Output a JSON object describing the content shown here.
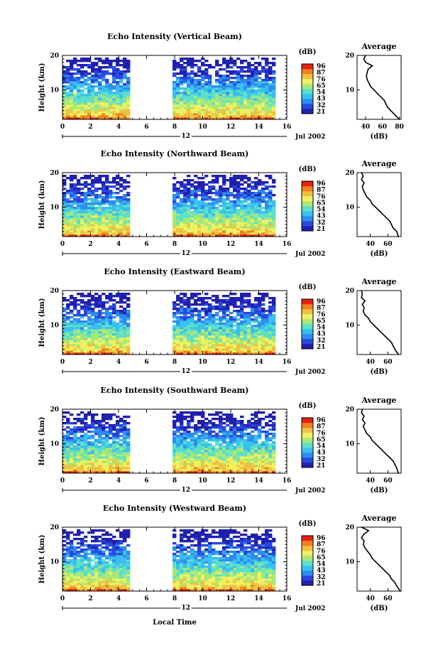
{
  "figure": {
    "x_axis_label": "Local Time",
    "date_label": "Jul 2002",
    "day_marker": "12"
  },
  "colorbar": {
    "unit": "(dB)",
    "ticks": [
      "96",
      "87",
      "76",
      "65",
      "54",
      "43",
      "32",
      "21"
    ],
    "colors": [
      "#2020b0",
      "#2848e0",
      "#2d8cf0",
      "#38c0f0",
      "#5ce0c8",
      "#a8e878",
      "#f0f060",
      "#f0c040",
      "#f08020",
      "#e82010"
    ]
  },
  "chart_data": [
    {
      "type": "heatmap",
      "title": "Echo Intensity (Vertical Beam)",
      "ylabel": "Height (km)",
      "xlabel": "Local Time",
      "x_ticks": [
        0,
        2,
        4,
        6,
        8,
        10,
        12,
        14,
        16
      ],
      "y_ticks": [
        10,
        20
      ],
      "xlim": [
        0,
        16
      ],
      "ylim": [
        1.5,
        20
      ],
      "data_gap_hours": [
        5,
        7.7
      ],
      "colorbar_ticks_dB": [
        21,
        32,
        43,
        54,
        65,
        76,
        87,
        96
      ],
      "profile": {
        "title": "Average",
        "xlabel": "(dB)",
        "x_ticks": [
          40,
          60,
          80
        ],
        "xlim": [
          30,
          82
        ],
        "height_km": [
          1.5,
          3,
          4,
          5,
          6,
          7,
          8,
          9,
          10,
          11,
          12,
          13,
          14,
          15,
          16,
          17,
          18,
          19,
          20
        ],
        "power_dB": [
          80,
          74,
          70,
          66,
          64,
          62,
          58,
          54,
          50,
          46,
          44,
          42,
          41,
          42,
          43,
          48,
          40,
          38,
          40
        ]
      }
    },
    {
      "type": "heatmap",
      "title": "Echo Intensity (Northward Beam)",
      "ylabel": "Height (km)",
      "xlabel": "Local Time",
      "x_ticks": [
        0,
        2,
        4,
        6,
        8,
        10,
        12,
        14,
        16
      ],
      "y_ticks": [
        10,
        20
      ],
      "xlim": [
        0,
        16
      ],
      "ylim": [
        1.5,
        20
      ],
      "data_gap_hours": [
        5,
        7.7
      ],
      "colorbar_ticks_dB": [
        21,
        32,
        43,
        54,
        65,
        76,
        87,
        96
      ],
      "profile": {
        "title": "Average",
        "xlabel": "(dB)",
        "x_ticks": [
          40,
          60
        ],
        "xlim": [
          25,
          75
        ],
        "height_km": [
          1.5,
          3,
          4,
          5,
          6,
          7,
          8,
          9,
          10,
          11,
          12,
          13,
          14,
          15,
          16,
          17,
          18,
          19,
          20
        ],
        "power_dB": [
          72,
          70,
          66,
          64,
          62,
          58,
          54,
          50,
          46,
          42,
          40,
          36,
          34,
          32,
          31,
          33,
          30,
          32,
          30
        ]
      }
    },
    {
      "type": "heatmap",
      "title": "Echo Intensity (Eastward Beam)",
      "ylabel": "Height (km)",
      "xlabel": "Local Time",
      "x_ticks": [
        0,
        2,
        4,
        6,
        8,
        10,
        12,
        14,
        16
      ],
      "y_ticks": [
        10,
        20
      ],
      "xlim": [
        0,
        16
      ],
      "ylim": [
        1.5,
        20
      ],
      "data_gap_hours": [
        5,
        7.7
      ],
      "colorbar_ticks_dB": [
        21,
        32,
        43,
        54,
        65,
        76,
        87,
        96
      ],
      "profile": {
        "title": "Average",
        "xlabel": "(dB)",
        "x_ticks": [
          40,
          60
        ],
        "xlim": [
          25,
          75
        ],
        "height_km": [
          1.5,
          3,
          4,
          5,
          6,
          7,
          8,
          9,
          10,
          11,
          12,
          13,
          14,
          15,
          16,
          17,
          18,
          19,
          20
        ],
        "power_dB": [
          72,
          68,
          66,
          64,
          60,
          56,
          52,
          48,
          44,
          40,
          38,
          34,
          32,
          33,
          31,
          34,
          30,
          31,
          30
        ]
      }
    },
    {
      "type": "heatmap",
      "title": "Echo Intensity (Southward Beam)",
      "ylabel": "Height (km)",
      "xlabel": "Local Time",
      "x_ticks": [
        0,
        2,
        4,
        6,
        8,
        10,
        12,
        14,
        16
      ],
      "y_ticks": [
        10,
        20
      ],
      "xlim": [
        0,
        16
      ],
      "ylim": [
        1.5,
        20
      ],
      "data_gap_hours": [
        5,
        7.7
      ],
      "colorbar_ticks_dB": [
        21,
        32,
        43,
        54,
        65,
        76,
        87,
        96
      ],
      "profile": {
        "title": "Average",
        "xlabel": "(dB)",
        "x_ticks": [
          40,
          60
        ],
        "xlim": [
          25,
          75
        ],
        "height_km": [
          1.5,
          3,
          4,
          5,
          6,
          7,
          8,
          9,
          10,
          11,
          12,
          13,
          14,
          15,
          16,
          17,
          18,
          19,
          20
        ],
        "power_dB": [
          72,
          70,
          68,
          66,
          62,
          58,
          54,
          50,
          46,
          42,
          40,
          36,
          34,
          32,
          34,
          31,
          33,
          30,
          31
        ]
      }
    },
    {
      "type": "heatmap",
      "title": "Echo Intensity (Westward Beam)",
      "ylabel": "Height (km)",
      "xlabel": "Local Time",
      "x_ticks": [
        0,
        2,
        4,
        6,
        8,
        10,
        12,
        14,
        16
      ],
      "y_ticks": [
        10,
        20
      ],
      "xlim": [
        0,
        16
      ],
      "ylim": [
        1.5,
        20
      ],
      "data_gap_hours": [
        5,
        7.7
      ],
      "colorbar_ticks_dB": [
        21,
        32,
        43,
        54,
        65,
        76,
        87,
        96
      ],
      "profile": {
        "title": "Average",
        "xlabel": "(dB)",
        "x_ticks": [
          40,
          60
        ],
        "xlim": [
          25,
          75
        ],
        "height_km": [
          1.5,
          3,
          4,
          5,
          6,
          7,
          8,
          9,
          10,
          11,
          12,
          13,
          14,
          15,
          16,
          17,
          18,
          19,
          20
        ],
        "power_dB": [
          74,
          70,
          68,
          64,
          62,
          58,
          54,
          50,
          46,
          42,
          40,
          37,
          34,
          32,
          33,
          30,
          33,
          38,
          30
        ]
      }
    }
  ]
}
